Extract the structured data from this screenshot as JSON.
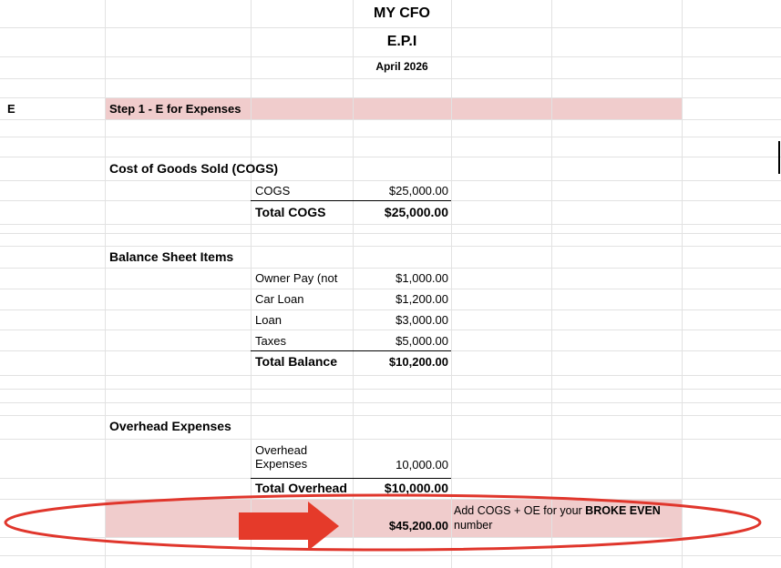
{
  "header": {
    "title": "MY CFO",
    "subtitle": "E.P.I",
    "date": "April 2026"
  },
  "step": {
    "marker": "E",
    "label": "Step 1 - E for Expenses"
  },
  "sections": [
    {
      "heading": "Cost of Goods Sold (COGS)",
      "items": [
        {
          "label": "COGS",
          "amount": "$25,000.00"
        }
      ],
      "total": {
        "label": "Total COGS",
        "amount": "$25,000.00"
      }
    },
    {
      "heading": "Balance Sheet Items",
      "items": [
        {
          "label": "Owner Pay (not",
          "amount": "$1,000.00"
        },
        {
          "label": "Car Loan",
          "amount": "$1,200.00"
        },
        {
          "label": "Loan",
          "amount": "$3,000.00"
        },
        {
          "label": "Taxes",
          "amount": "$5,000.00"
        }
      ],
      "total": {
        "label": "Total Balance",
        "amount": "$10,200.00"
      }
    },
    {
      "heading": "Overhead Expenses",
      "items": [
        {
          "label": "Overhead Expenses",
          "amount": "10,000.00"
        }
      ],
      "total": {
        "label": "Total Overhead",
        "amount": "$10,000.00"
      }
    }
  ],
  "summary": {
    "amount": "$45,200.00",
    "note_prefix": "Add COGS + OE for your",
    "note_bold": "BROKE EVEN",
    "note_suffix": "number"
  }
}
